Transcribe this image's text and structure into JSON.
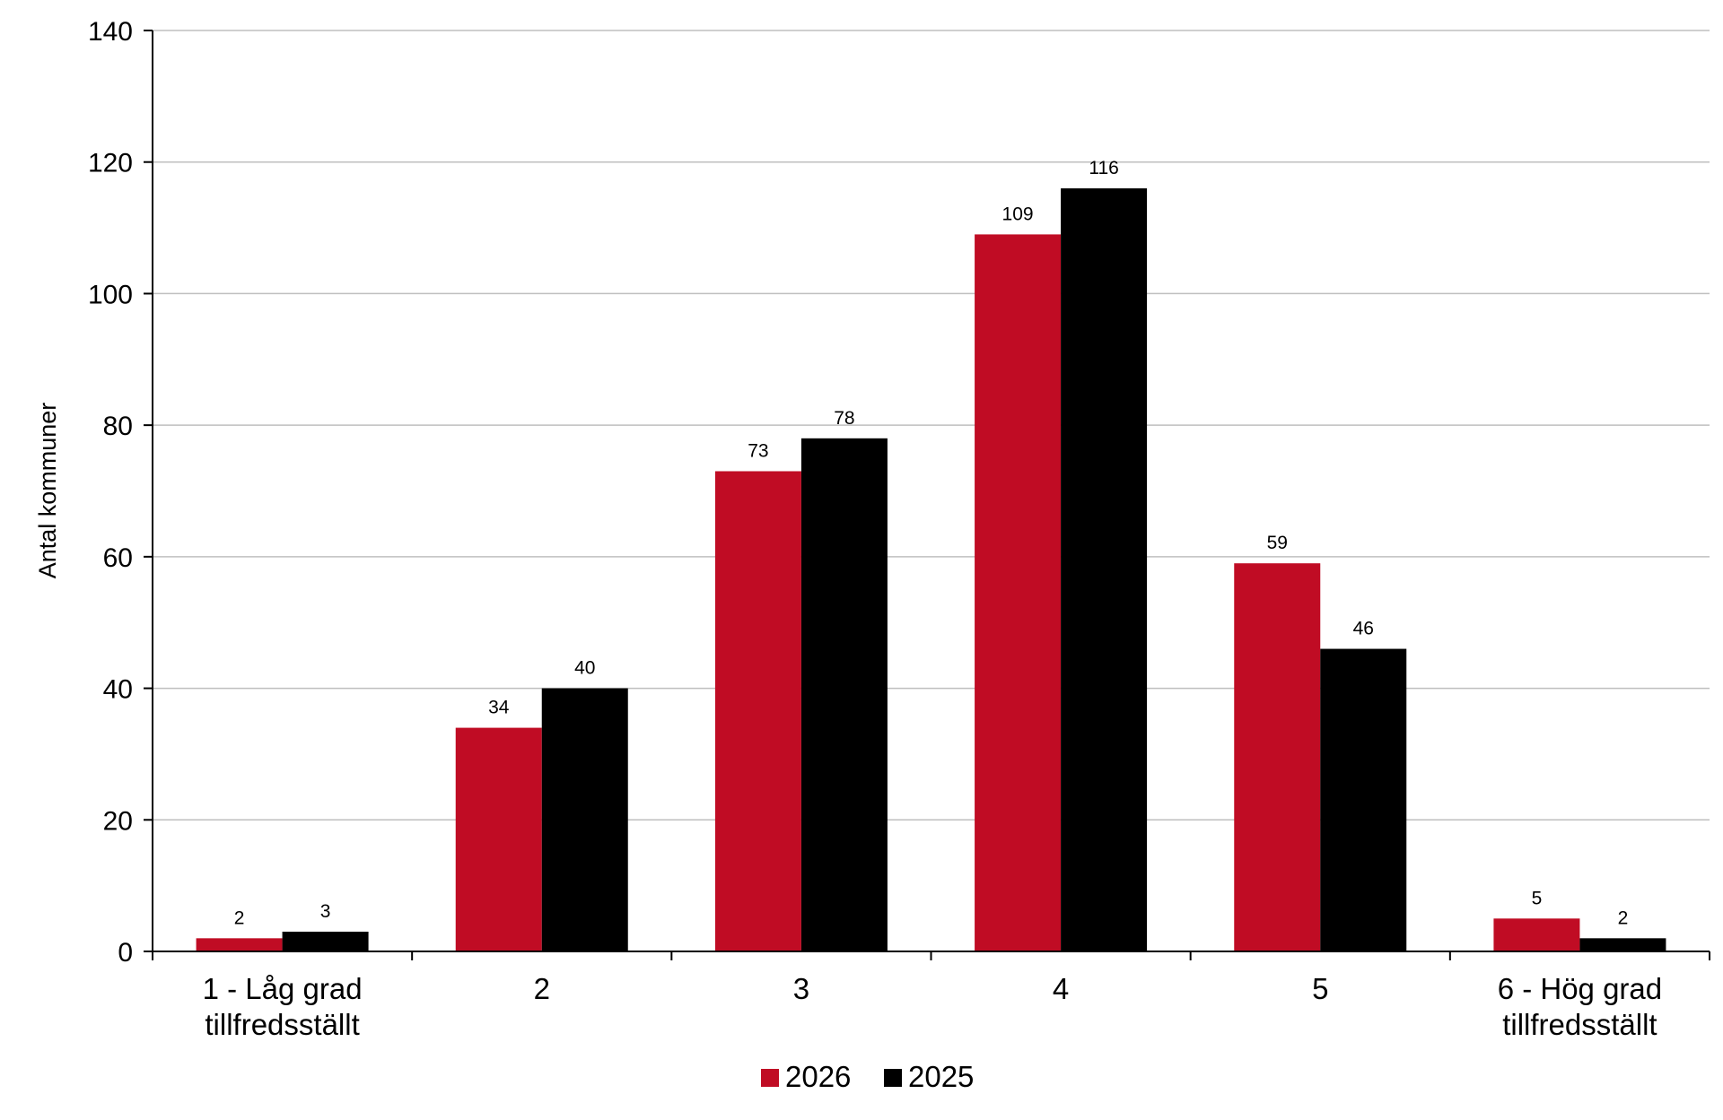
{
  "chart_data": {
    "type": "bar",
    "title": "",
    "xlabel": "",
    "ylabel": "Antal kommuner",
    "ylim": [
      0,
      140
    ],
    "yticks": [
      0,
      20,
      40,
      60,
      80,
      100,
      120,
      140
    ],
    "grid": true,
    "legend_position": "bottom",
    "categories": [
      [
        "1 - Låg grad",
        "tillfredsställt"
      ],
      [
        "2"
      ],
      [
        "3"
      ],
      [
        "4"
      ],
      [
        "5"
      ],
      [
        "6 - Hög grad",
        "tillfredsställt"
      ]
    ],
    "series": [
      {
        "name": "2026",
        "color": "#C00C24",
        "values": [
          2,
          34,
          73,
          109,
          59,
          5
        ]
      },
      {
        "name": "2025",
        "color": "#000000",
        "values": [
          3,
          40,
          78,
          116,
          46,
          2
        ]
      }
    ]
  }
}
